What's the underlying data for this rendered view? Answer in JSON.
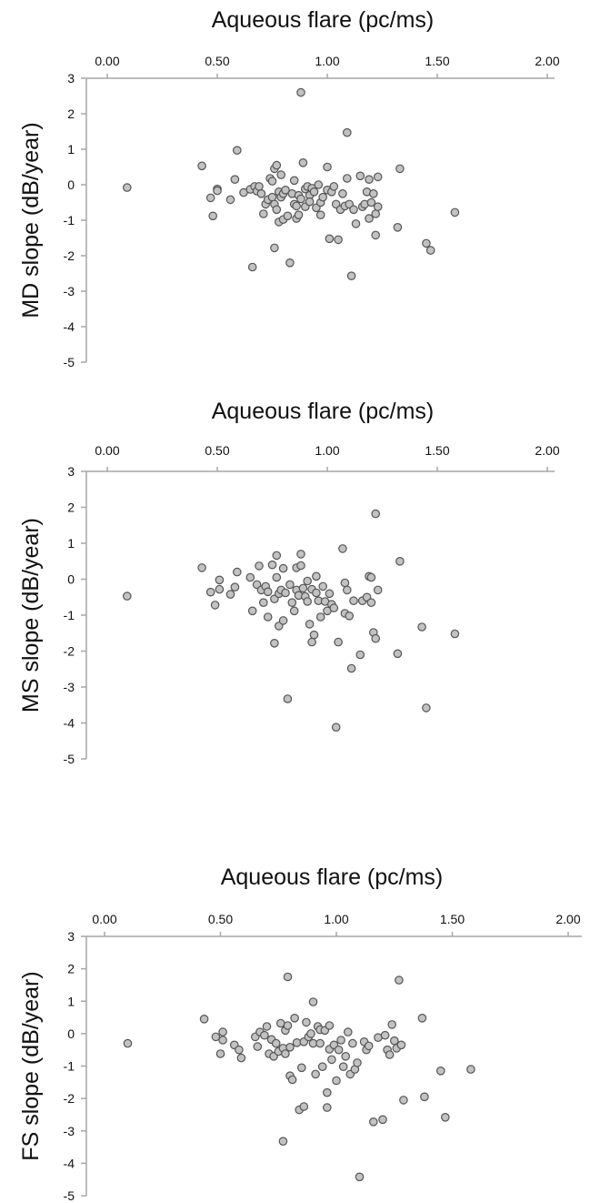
{
  "chart_data": [
    {
      "type": "scatter",
      "xlabel": "Aqueous flare (pc/ms)",
      "ylabel": "MD slope (dB/year)",
      "xlim": [
        0,
        2
      ],
      "ylim": [
        -5,
        3
      ],
      "x_ticks": [
        "0.00",
        "0.50",
        "1.00",
        "1.50",
        "2.00"
      ],
      "y_ticks": [
        "3",
        "2",
        "1",
        "0",
        "-1",
        "-2",
        "-3",
        "-4",
        "-5"
      ],
      "x_axis_position": "top",
      "grid": false,
      "points": [
        [
          0.09,
          -0.08
        ],
        [
          0.43,
          0.53
        ],
        [
          0.47,
          -0.37
        ],
        [
          0.48,
          -0.88
        ],
        [
          0.5,
          -0.12
        ],
        [
          0.5,
          -0.17
        ],
        [
          0.56,
          -0.42
        ],
        [
          0.58,
          0.15
        ],
        [
          0.59,
          0.97
        ],
        [
          0.62,
          -0.22
        ],
        [
          0.65,
          -0.13
        ],
        [
          0.66,
          -2.32
        ],
        [
          0.67,
          -0.05
        ],
        [
          0.68,
          -0.18
        ],
        [
          0.69,
          -0.05
        ],
        [
          0.7,
          -0.25
        ],
        [
          0.71,
          -0.82
        ],
        [
          0.72,
          -0.55
        ],
        [
          0.73,
          -0.42
        ],
        [
          0.74,
          0.18
        ],
        [
          0.75,
          0.1
        ],
        [
          0.75,
          -0.35
        ],
        [
          0.76,
          0.45
        ],
        [
          0.76,
          -0.55
        ],
        [
          0.76,
          -1.78
        ],
        [
          0.77,
          0.55
        ],
        [
          0.77,
          -0.7
        ],
        [
          0.78,
          -0.2
        ],
        [
          0.78,
          -1.05
        ],
        [
          0.79,
          0.28
        ],
        [
          0.79,
          -0.35
        ],
        [
          0.8,
          -0.98
        ],
        [
          0.8,
          -0.25
        ],
        [
          0.81,
          -0.15
        ],
        [
          0.82,
          -0.88
        ],
        [
          0.83,
          -2.2
        ],
        [
          0.84,
          -0.25
        ],
        [
          0.85,
          -0.55
        ],
        [
          0.85,
          0.12
        ],
        [
          0.86,
          -0.95
        ],
        [
          0.86,
          -0.6
        ],
        [
          0.87,
          -0.3
        ],
        [
          0.87,
          -0.85
        ],
        [
          0.88,
          -0.4
        ],
        [
          0.88,
          2.6
        ],
        [
          0.89,
          0.62
        ],
        [
          0.9,
          -0.12
        ],
        [
          0.9,
          -0.62
        ],
        [
          0.91,
          -0.05
        ],
        [
          0.92,
          -0.3
        ],
        [
          0.92,
          -0.48
        ],
        [
          0.93,
          -0.1
        ],
        [
          0.94,
          -0.2
        ],
        [
          0.95,
          -0.65
        ],
        [
          0.96,
          0.0
        ],
        [
          0.97,
          -0.5
        ],
        [
          0.97,
          -0.85
        ],
        [
          0.98,
          -0.35
        ],
        [
          1.0,
          0.5
        ],
        [
          1.0,
          -0.15
        ],
        [
          1.01,
          -1.52
        ],
        [
          1.02,
          -0.2
        ],
        [
          1.03,
          -0.05
        ],
        [
          1.04,
          -0.55
        ],
        [
          1.05,
          -1.55
        ],
        [
          1.06,
          -0.7
        ],
        [
          1.07,
          -0.25
        ],
        [
          1.08,
          -0.6
        ],
        [
          1.09,
          1.47
        ],
        [
          1.09,
          0.18
        ],
        [
          1.1,
          -0.55
        ],
        [
          1.11,
          -2.57
        ],
        [
          1.12,
          -0.7
        ],
        [
          1.13,
          -1.1
        ],
        [
          1.15,
          0.25
        ],
        [
          1.16,
          -0.62
        ],
        [
          1.17,
          -0.55
        ],
        [
          1.18,
          -0.2
        ],
        [
          1.19,
          -0.95
        ],
        [
          1.19,
          0.15
        ],
        [
          1.2,
          -0.5
        ],
        [
          1.21,
          -0.25
        ],
        [
          1.22,
          -1.42
        ],
        [
          1.22,
          -0.82
        ],
        [
          1.23,
          0.22
        ],
        [
          1.23,
          -0.62
        ],
        [
          1.32,
          -1.2
        ],
        [
          1.33,
          0.45
        ],
        [
          1.45,
          -1.65
        ],
        [
          1.47,
          -1.85
        ],
        [
          1.58,
          -0.78
        ]
      ]
    },
    {
      "type": "scatter",
      "xlabel": "Aqueous flare (pc/ms)",
      "ylabel": "MS slope (dB/year)",
      "xlim": [
        0,
        2
      ],
      "ylim": [
        -5,
        3
      ],
      "x_ticks": [
        "0.00",
        "0.50",
        "1.00",
        "1.50",
        "2.00"
      ],
      "y_ticks": [
        "3",
        "2",
        "1",
        "0",
        "-1",
        "-2",
        "-3",
        "-4",
        "-5"
      ],
      "x_axis_position": "top",
      "grid": false,
      "points": [
        [
          0.09,
          -0.47
        ],
        [
          0.43,
          0.32
        ],
        [
          0.47,
          -0.36
        ],
        [
          0.49,
          -0.72
        ],
        [
          0.51,
          -0.02
        ],
        [
          0.51,
          -0.28
        ],
        [
          0.56,
          -0.42
        ],
        [
          0.58,
          -0.22
        ],
        [
          0.59,
          0.2
        ],
        [
          0.65,
          0.05
        ],
        [
          0.66,
          -0.88
        ],
        [
          0.68,
          -0.15
        ],
        [
          0.69,
          0.37
        ],
        [
          0.7,
          -0.3
        ],
        [
          0.71,
          -0.65
        ],
        [
          0.72,
          -0.2
        ],
        [
          0.73,
          -1.05
        ],
        [
          0.73,
          -0.35
        ],
        [
          0.75,
          0.4
        ],
        [
          0.76,
          -0.55
        ],
        [
          0.76,
          -1.78
        ],
        [
          0.77,
          0.66
        ],
        [
          0.77,
          0.05
        ],
        [
          0.78,
          -1.3
        ],
        [
          0.78,
          -0.4
        ],
        [
          0.79,
          -0.3
        ],
        [
          0.8,
          0.3
        ],
        [
          0.8,
          -1.15
        ],
        [
          0.81,
          -0.38
        ],
        [
          0.82,
          -3.33
        ],
        [
          0.83,
          -0.15
        ],
        [
          0.84,
          -0.65
        ],
        [
          0.85,
          -0.88
        ],
        [
          0.86,
          0.32
        ],
        [
          0.86,
          -0.3
        ],
        [
          0.87,
          -0.45
        ],
        [
          0.88,
          0.7
        ],
        [
          0.88,
          0.38
        ],
        [
          0.89,
          -0.25
        ],
        [
          0.9,
          -0.48
        ],
        [
          0.91,
          -0.05
        ],
        [
          0.91,
          -0.62
        ],
        [
          0.92,
          -1.25
        ],
        [
          0.93,
          -0.28
        ],
        [
          0.93,
          -1.75
        ],
        [
          0.94,
          -1.55
        ],
        [
          0.95,
          0.08
        ],
        [
          0.95,
          -0.38
        ],
        [
          0.96,
          -0.6
        ],
        [
          0.97,
          -1.05
        ],
        [
          0.98,
          -0.2
        ],
        [
          0.99,
          -0.62
        ],
        [
          1.0,
          -0.88
        ],
        [
          1.01,
          -0.4
        ],
        [
          1.02,
          -0.7
        ],
        [
          1.03,
          -0.8
        ],
        [
          1.04,
          -4.12
        ],
        [
          1.05,
          -1.75
        ],
        [
          1.07,
          0.85
        ],
        [
          1.08,
          -0.1
        ],
        [
          1.08,
          -0.95
        ],
        [
          1.09,
          -0.3
        ],
        [
          1.1,
          -1.02
        ],
        [
          1.11,
          -2.48
        ],
        [
          1.12,
          -0.6
        ],
        [
          1.15,
          -2.1
        ],
        [
          1.16,
          -0.6
        ],
        [
          1.18,
          -0.5
        ],
        [
          1.19,
          0.08
        ],
        [
          1.2,
          0.05
        ],
        [
          1.2,
          -0.65
        ],
        [
          1.21,
          -1.48
        ],
        [
          1.22,
          -1.65
        ],
        [
          1.22,
          1.82
        ],
        [
          1.23,
          -0.3
        ],
        [
          1.32,
          -2.07
        ],
        [
          1.33,
          0.5
        ],
        [
          1.43,
          -1.33
        ],
        [
          1.45,
          -3.58
        ],
        [
          1.58,
          -1.52
        ]
      ]
    },
    {
      "type": "scatter",
      "xlabel": "Aqueous flare (pc/ms)",
      "ylabel": "FS slope (dB/year)",
      "xlim": [
        0,
        2
      ],
      "ylim": [
        -5,
        3
      ],
      "x_ticks": [
        "0.00",
        "0.50",
        "1.00",
        "1.50",
        "2.00"
      ],
      "y_ticks": [
        "3",
        "2",
        "1",
        "0",
        "-1",
        "-2",
        "-3",
        "-4",
        "-5"
      ],
      "x_axis_position": "top",
      "grid": false,
      "points": [
        [
          0.1,
          -0.3
        ],
        [
          0.43,
          0.45
        ],
        [
          0.48,
          -0.1
        ],
        [
          0.5,
          -0.62
        ],
        [
          0.51,
          0.05
        ],
        [
          0.51,
          -0.2
        ],
        [
          0.56,
          -0.35
        ],
        [
          0.58,
          -0.5
        ],
        [
          0.59,
          -0.75
        ],
        [
          0.65,
          -0.1
        ],
        [
          0.66,
          -0.4
        ],
        [
          0.67,
          0.05
        ],
        [
          0.69,
          -0.05
        ],
        [
          0.7,
          0.22
        ],
        [
          0.71,
          -0.62
        ],
        [
          0.72,
          -0.18
        ],
        [
          0.73,
          -0.7
        ],
        [
          0.74,
          -0.3
        ],
        [
          0.75,
          -0.55
        ],
        [
          0.76,
          0.32
        ],
        [
          0.77,
          -0.45
        ],
        [
          0.77,
          -3.32
        ],
        [
          0.78,
          0.1
        ],
        [
          0.78,
          -0.62
        ],
        [
          0.79,
          1.75
        ],
        [
          0.79,
          0.25
        ],
        [
          0.8,
          -0.42
        ],
        [
          0.8,
          -1.3
        ],
        [
          0.81,
          -1.42
        ],
        [
          0.82,
          0.48
        ],
        [
          0.83,
          -0.28
        ],
        [
          0.84,
          -2.35
        ],
        [
          0.85,
          -1.05
        ],
        [
          0.86,
          -2.25
        ],
        [
          0.86,
          -0.25
        ],
        [
          0.87,
          0.35
        ],
        [
          0.88,
          -0.1
        ],
        [
          0.89,
          0.0
        ],
        [
          0.9,
          0.98
        ],
        [
          0.9,
          -0.3
        ],
        [
          0.91,
          -1.25
        ],
        [
          0.92,
          0.22
        ],
        [
          0.93,
          0.12
        ],
        [
          0.93,
          -0.3
        ],
        [
          0.94,
          -1.02
        ],
        [
          0.95,
          0.1
        ],
        [
          0.96,
          -1.82
        ],
        [
          0.96,
          -2.28
        ],
        [
          0.97,
          0.25
        ],
        [
          0.97,
          -0.48
        ],
        [
          0.98,
          -0.8
        ],
        [
          0.99,
          -0.35
        ],
        [
          1.0,
          -1.45
        ],
        [
          1.01,
          -0.5
        ],
        [
          1.02,
          -0.2
        ],
        [
          1.03,
          -1.02
        ],
        [
          1.04,
          -0.7
        ],
        [
          1.05,
          0.05
        ],
        [
          1.06,
          -1.25
        ],
        [
          1.07,
          -0.3
        ],
        [
          1.08,
          -1.1
        ],
        [
          1.09,
          -0.9
        ],
        [
          1.1,
          -4.42
        ],
        [
          1.12,
          -0.25
        ],
        [
          1.13,
          -0.5
        ],
        [
          1.14,
          -0.38
        ],
        [
          1.16,
          -2.72
        ],
        [
          1.18,
          -0.12
        ],
        [
          1.2,
          -2.65
        ],
        [
          1.21,
          -0.05
        ],
        [
          1.22,
          -0.5
        ],
        [
          1.23,
          -0.65
        ],
        [
          1.24,
          0.28
        ],
        [
          1.25,
          -0.22
        ],
        [
          1.26,
          -0.45
        ],
        [
          1.27,
          1.65
        ],
        [
          1.28,
          -0.35
        ],
        [
          1.29,
          -2.05
        ],
        [
          1.37,
          0.48
        ],
        [
          1.38,
          -1.95
        ],
        [
          1.45,
          -1.15
        ],
        [
          1.47,
          -2.58
        ],
        [
          1.58,
          -1.1
        ]
      ]
    }
  ]
}
